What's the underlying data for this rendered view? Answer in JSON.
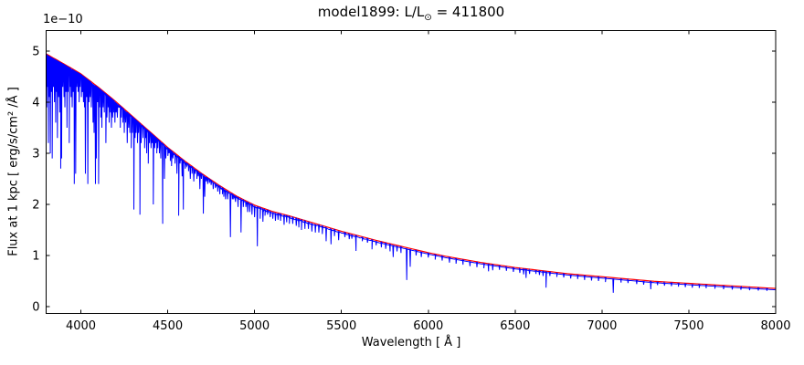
{
  "figure": {
    "title": {
      "prefix": "model1899: L/L",
      "sub": "⊙",
      "suffix": " = 411800"
    },
    "xlabel": "Wavelength [ Å ]",
    "ylabel": "Flux at 1 kpc [ erg/s/cm² /Å ]",
    "offset_label": "1e−10"
  },
  "colors": {
    "spectrum": "#0000ff",
    "continuum": "#ff0000",
    "axis": "#000000",
    "background": "#ffffff"
  },
  "chart_data": {
    "type": "line",
    "title": "model1899: L/L⊙ = 411800",
    "xlabel": "Wavelength [ Å ]",
    "ylabel": "Flux at 1 kpc [ erg/s/cm² /Å ]",
    "y_scale_factor": "1e-10",
    "xlim": [
      3800,
      8000
    ],
    "ylim": [
      -0.13,
      5.41
    ],
    "xticks": [
      4000,
      4500,
      5000,
      5500,
      6000,
      6500,
      7000,
      7500,
      8000
    ],
    "yticks": [
      0,
      1,
      2,
      3,
      4,
      5
    ],
    "grid": false,
    "legend": null,
    "series": [
      {
        "name": "continuum_fit",
        "color": "#ff0000",
        "points": [
          [
            3800,
            4.93
          ],
          [
            3900,
            4.74
          ],
          [
            4000,
            4.54
          ],
          [
            4100,
            4.28
          ],
          [
            4200,
            4.0
          ],
          [
            4300,
            3.7
          ],
          [
            4400,
            3.4
          ],
          [
            4500,
            3.1
          ],
          [
            4600,
            2.83
          ],
          [
            4700,
            2.58
          ],
          [
            4800,
            2.35
          ],
          [
            4900,
            2.14
          ],
          [
            5000,
            1.97
          ],
          [
            5100,
            1.85
          ],
          [
            5200,
            1.76
          ],
          [
            5300,
            1.66
          ],
          [
            5400,
            1.56
          ],
          [
            5500,
            1.46
          ],
          [
            5600,
            1.37
          ],
          [
            5700,
            1.28
          ],
          [
            5800,
            1.2
          ],
          [
            5900,
            1.12
          ],
          [
            6000,
            1.04
          ],
          [
            6100,
            0.97
          ],
          [
            6200,
            0.91
          ],
          [
            6300,
            0.85
          ],
          [
            6400,
            0.8
          ],
          [
            6500,
            0.75
          ],
          [
            6600,
            0.71
          ],
          [
            6700,
            0.67
          ],
          [
            6800,
            0.63
          ],
          [
            6900,
            0.6
          ],
          [
            7000,
            0.57
          ],
          [
            7100,
            0.54
          ],
          [
            7200,
            0.51
          ],
          [
            7300,
            0.48
          ],
          [
            7400,
            0.46
          ],
          [
            7500,
            0.44
          ],
          [
            7600,
            0.42
          ],
          [
            7700,
            0.4
          ],
          [
            7800,
            0.38
          ],
          [
            7900,
            0.36
          ],
          [
            8000,
            0.34
          ]
        ]
      },
      {
        "name": "spectrum",
        "color": "#0000ff",
        "description": "stellar spectrum: continuum with absorption lines; each entry is [wavelength_A, flux_at_line_bottom_1e-10]",
        "absorption_lines": [
          [
            3803,
            3.9
          ],
          [
            3808,
            4.3
          ],
          [
            3813,
            3.2
          ],
          [
            3819,
            4.1
          ],
          [
            3824,
            3.0
          ],
          [
            3830,
            4.2
          ],
          [
            3835,
            2.9
          ],
          [
            3842,
            4.3
          ],
          [
            3848,
            4.0
          ],
          [
            3855,
            3.6
          ],
          [
            3860,
            4.2
          ],
          [
            3865,
            3.3
          ],
          [
            3872,
            4.1
          ],
          [
            3878,
            3.8
          ],
          [
            3884,
            2.7
          ],
          [
            3889,
            2.9
          ],
          [
            3896,
            4.3
          ],
          [
            3903,
            4.1
          ],
          [
            3908,
            3.9
          ],
          [
            3914,
            4.2
          ],
          [
            3920,
            3.5
          ],
          [
            3926,
            4.2
          ],
          [
            3933,
            3.2
          ],
          [
            3938,
            4.3
          ],
          [
            3944,
            4.1
          ],
          [
            3950,
            3.9
          ],
          [
            3956,
            4.2
          ],
          [
            3962,
            2.4
          ],
          [
            3970,
            2.6
          ],
          [
            3977,
            4.3
          ],
          [
            3984,
            4.2
          ],
          [
            3990,
            4.0
          ],
          [
            3996,
            4.3
          ],
          [
            4003,
            4.1
          ],
          [
            4009,
            4.2
          ],
          [
            4015,
            4.0
          ],
          [
            4021,
            3.9
          ],
          [
            4026,
            2.6
          ],
          [
            4033,
            4.1
          ],
          [
            4040,
            2.4
          ],
          [
            4047,
            4.0
          ],
          [
            4054,
            4.1
          ],
          [
            4060,
            3.9
          ],
          [
            4070,
            3.6
          ],
          [
            4076,
            3.4
          ],
          [
            4084,
            2.4
          ],
          [
            4089,
            2.9
          ],
          [
            4096,
            4.0
          ],
          [
            4102,
            2.4
          ],
          [
            4108,
            3.9
          ],
          [
            4115,
            3.7
          ],
          [
            4121,
            3.5
          ],
          [
            4128,
            3.9
          ],
          [
            4135,
            3.8
          ],
          [
            4144,
            3.2
          ],
          [
            4150,
            3.7
          ],
          [
            4157,
            3.9
          ],
          [
            4163,
            3.6
          ],
          [
            4170,
            3.8
          ],
          [
            4176,
            3.5
          ],
          [
            4183,
            3.7
          ],
          [
            4190,
            3.8
          ],
          [
            4196,
            3.6
          ],
          [
            4203,
            3.8
          ],
          [
            4210,
            3.7
          ],
          [
            4217,
            3.9
          ],
          [
            4227,
            3.5
          ],
          [
            4233,
            3.7
          ],
          [
            4242,
            3.6
          ],
          [
            4250,
            3.4
          ],
          [
            4258,
            3.6
          ],
          [
            4267,
            3.2
          ],
          [
            4275,
            3.5
          ],
          [
            4282,
            3.4
          ],
          [
            4290,
            3.1
          ],
          [
            4297,
            3.4
          ],
          [
            4305,
            1.9
          ],
          [
            4312,
            3.3
          ],
          [
            4318,
            3.4
          ],
          [
            4326,
            3.2
          ],
          [
            4332,
            3.4
          ],
          [
            4340,
            1.8
          ],
          [
            4347,
            3.2
          ],
          [
            4358,
            3.3
          ],
          [
            4367,
            3.1
          ],
          [
            4373,
            3.3
          ],
          [
            4379,
            3.0
          ],
          [
            4388,
            2.8
          ],
          [
            4395,
            3.2
          ],
          [
            4404,
            3.1
          ],
          [
            4411,
            3.2
          ],
          [
            4417,
            2.0
          ],
          [
            4425,
            3.1
          ],
          [
            4431,
            3.2
          ],
          [
            4437,
            3.0
          ],
          [
            4443,
            3.1
          ],
          [
            4452,
            3.0
          ],
          [
            4460,
            2.9
          ],
          [
            4471,
            1.62
          ],
          [
            4481,
            2.5
          ],
          [
            4489,
            2.9
          ],
          [
            4501,
            2.95
          ],
          [
            4508,
            3.0
          ],
          [
            4515,
            2.85
          ],
          [
            4522,
            2.75
          ],
          [
            4530,
            2.9
          ],
          [
            4542,
            2.8
          ],
          [
            4553,
            2.6
          ],
          [
            4563,
            1.78
          ],
          [
            4571,
            2.8
          ],
          [
            4583,
            2.55
          ],
          [
            4590,
            1.9
          ],
          [
            4601,
            2.7
          ],
          [
            4610,
            2.75
          ],
          [
            4620,
            2.65
          ],
          [
            4630,
            2.5
          ],
          [
            4640,
            2.6
          ],
          [
            4650,
            2.45
          ],
          [
            4658,
            2.6
          ],
          [
            4668,
            2.5
          ],
          [
            4676,
            2.55
          ],
          [
            4685,
            2.3
          ],
          [
            4694,
            2.5
          ],
          [
            4705,
            1.82
          ],
          [
            4713,
            2.15
          ],
          [
            4722,
            2.45
          ],
          [
            4730,
            2.4
          ],
          [
            4740,
            2.42
          ],
          [
            4750,
            2.38
          ],
          [
            4762,
            2.3
          ],
          [
            4775,
            2.32
          ],
          [
            4788,
            2.25
          ],
          [
            4800,
            2.2
          ],
          [
            4815,
            2.2
          ],
          [
            4823,
            2.15
          ],
          [
            4833,
            2.1
          ],
          [
            4845,
            2.1
          ],
          [
            4861,
            1.36
          ],
          [
            4872,
            2.1
          ],
          [
            4880,
            2.1
          ],
          [
            4890,
            2.05
          ],
          [
            4905,
            1.95
          ],
          [
            4922,
            1.45
          ],
          [
            4935,
            1.95
          ],
          [
            4950,
            1.95
          ],
          [
            4960,
            1.85
          ],
          [
            4972,
            1.85
          ],
          [
            4985,
            1.8
          ],
          [
            5000,
            1.75
          ],
          [
            5016,
            1.18
          ],
          [
            5032,
            1.72
          ],
          [
            5048,
            1.66
          ],
          [
            5060,
            1.78
          ],
          [
            5075,
            1.8
          ],
          [
            5090,
            1.75
          ],
          [
            5105,
            1.72
          ],
          [
            5120,
            1.68
          ],
          [
            5135,
            1.7
          ],
          [
            5150,
            1.68
          ],
          [
            5170,
            1.6
          ],
          [
            5185,
            1.65
          ],
          [
            5200,
            1.62
          ],
          [
            5220,
            1.62
          ],
          [
            5240,
            1.58
          ],
          [
            5255,
            1.55
          ],
          [
            5270,
            1.5
          ],
          [
            5290,
            1.52
          ],
          [
            5310,
            1.52
          ],
          [
            5330,
            1.47
          ],
          [
            5350,
            1.45
          ],
          [
            5370,
            1.45
          ],
          [
            5390,
            1.42
          ],
          [
            5412,
            1.28
          ],
          [
            5440,
            1.22
          ],
          [
            5460,
            1.38
          ],
          [
            5484,
            1.3
          ],
          [
            5520,
            1.36
          ],
          [
            5545,
            1.32
          ],
          [
            5560,
            1.33
          ],
          [
            5584,
            1.09
          ],
          [
            5620,
            1.28
          ],
          [
            5650,
            1.25
          ],
          [
            5676,
            1.12
          ],
          [
            5700,
            1.2
          ],
          [
            5730,
            1.16
          ],
          [
            5755,
            1.13
          ],
          [
            5780,
            1.08
          ],
          [
            5798,
            0.97
          ],
          [
            5820,
            1.08
          ],
          [
            5843,
            1.05
          ],
          [
            5876,
            0.52
          ],
          [
            5896,
            0.78
          ],
          [
            5930,
            1.0
          ],
          [
            5960,
            0.97
          ],
          [
            6000,
            0.96
          ],
          [
            6040,
            0.92
          ],
          [
            6080,
            0.9
          ],
          [
            6122,
            0.86
          ],
          [
            6160,
            0.84
          ],
          [
            6200,
            0.82
          ],
          [
            6240,
            0.79
          ],
          [
            6280,
            0.77
          ],
          [
            6320,
            0.75
          ],
          [
            6347,
            0.69
          ],
          [
            6371,
            0.71
          ],
          [
            6410,
            0.72
          ],
          [
            6450,
            0.7
          ],
          [
            6490,
            0.68
          ],
          [
            6527,
            0.66
          ],
          [
            6549,
            0.63
          ],
          [
            6563,
            0.56
          ],
          [
            6583,
            0.64
          ],
          [
            6620,
            0.64
          ],
          [
            6640,
            0.62
          ],
          [
            6661,
            0.6
          ],
          [
            6678,
            0.37
          ],
          [
            6700,
            0.6
          ],
          [
            6740,
            0.58
          ],
          [
            6780,
            0.57
          ],
          [
            6820,
            0.55
          ],
          [
            6860,
            0.54
          ],
          [
            6900,
            0.52
          ],
          [
            6940,
            0.51
          ],
          [
            6980,
            0.5
          ],
          [
            7020,
            0.48
          ],
          [
            7065,
            0.27
          ],
          [
            7110,
            0.47
          ],
          [
            7150,
            0.46
          ],
          [
            7200,
            0.44
          ],
          [
            7240,
            0.43
          ],
          [
            7281,
            0.34
          ],
          [
            7320,
            0.42
          ],
          [
            7360,
            0.41
          ],
          [
            7400,
            0.4
          ],
          [
            7440,
            0.39
          ],
          [
            7480,
            0.38
          ],
          [
            7520,
            0.37
          ],
          [
            7560,
            0.365
          ],
          [
            7600,
            0.36
          ],
          [
            7650,
            0.35
          ],
          [
            7700,
            0.34
          ],
          [
            7750,
            0.335
          ],
          [
            7800,
            0.33
          ],
          [
            7850,
            0.32
          ],
          [
            7900,
            0.315
          ],
          [
            7950,
            0.31
          ]
        ]
      }
    ]
  }
}
